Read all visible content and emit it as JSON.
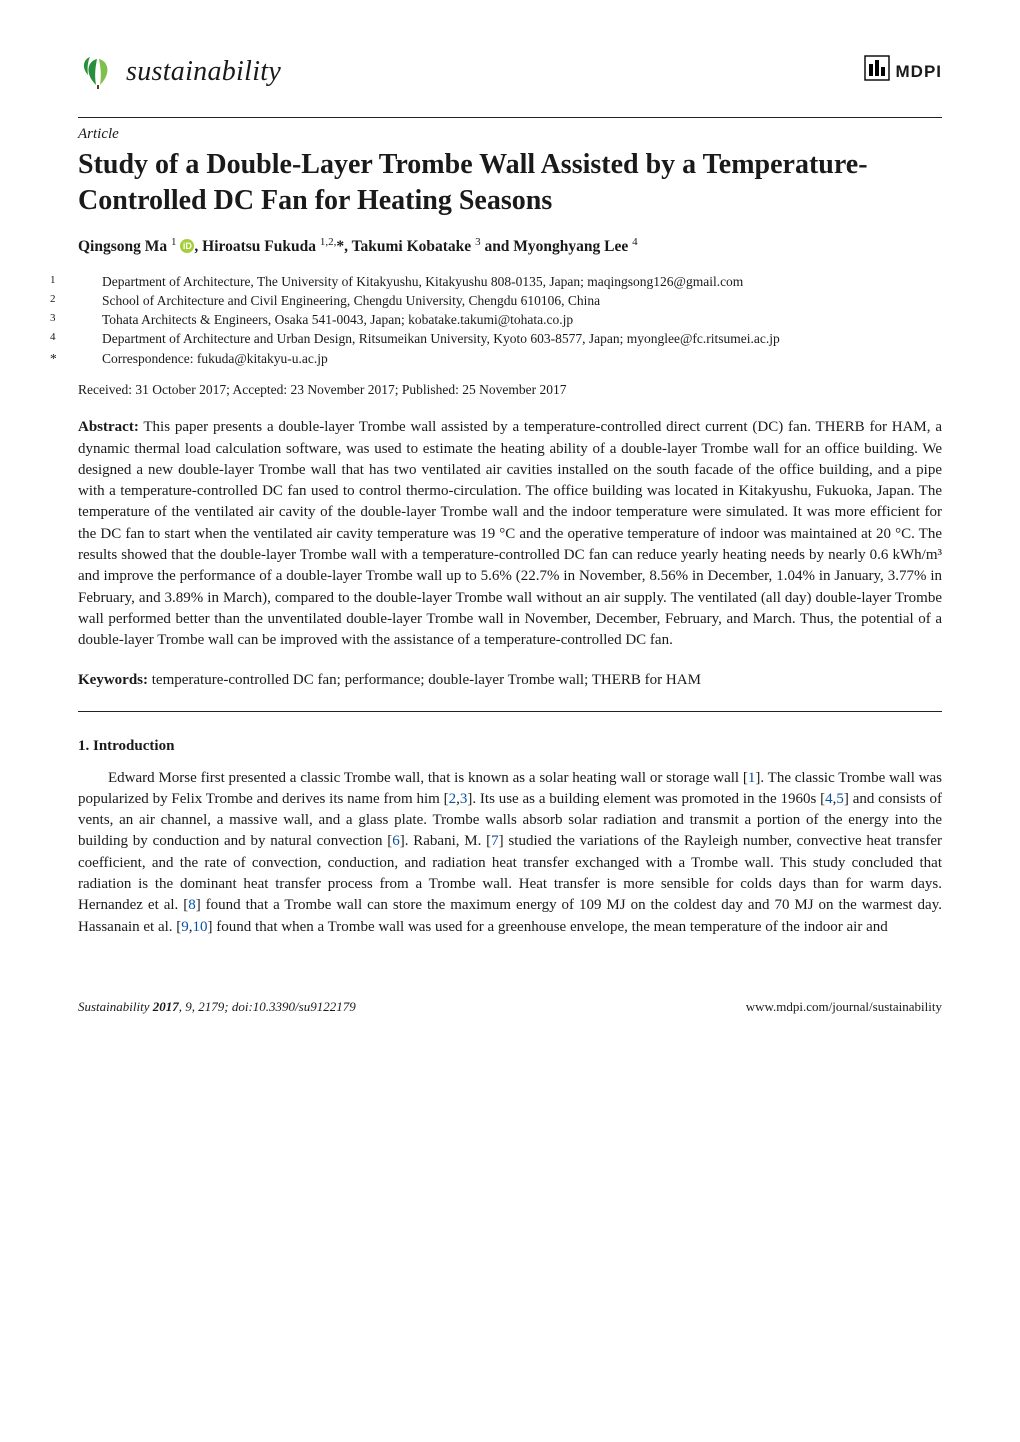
{
  "header": {
    "journal_name": "sustainability",
    "leaf_colors": {
      "main": "#2a8f3a",
      "accent": "#7fbf4b"
    },
    "mdpi": "MDPI"
  },
  "article": {
    "type": "Article",
    "title": "Study of a Double-Layer Trombe Wall Assisted by a Temperature-Controlled DC Fan for Heating Seasons",
    "authors_html": "Qingsong Ma <sup>1</sup> <span class=\"orcid\" data-name=\"orcid-icon\" data-interactable=\"false\">iD</span>, Hiroatsu Fukuda <sup>1,2,</sup>*, Takumi Kobatake <sup>3</sup> and Myonghyang Lee <sup>4</sup>",
    "affiliations": [
      {
        "marker": "1",
        "text": "Department of Architecture, The University of Kitakyushu, Kitakyushu 808-0135, Japan; maqingsong126@gmail.com"
      },
      {
        "marker": "2",
        "text": "School of Architecture and Civil Engineering, Chengdu University, Chengdu 610106, China"
      },
      {
        "marker": "3",
        "text": "Tohata Architects & Engineers, Osaka 541-0043, Japan; kobatake.takumi@tohata.co.jp"
      },
      {
        "marker": "4",
        "text": "Department of Architecture and Urban Design, Ritsumeikan University, Kyoto 603-8577, Japan; myonglee@fc.ritsumei.ac.jp"
      }
    ],
    "correspondence": {
      "marker": "*",
      "text": "Correspondence: fukuda@kitakyu-u.ac.jp"
    },
    "dates": "Received: 31 October 2017; Accepted: 23 November 2017; Published: 25 November 2017",
    "abstract_label": "Abstract:",
    "abstract_text": "This paper presents a double-layer Trombe wall assisted by a temperature-controlled direct current (DC) fan. THERB for HAM, a dynamic thermal load calculation software, was used to estimate the heating ability of a double-layer Trombe wall for an office building. We designed a new double-layer Trombe wall that has two ventilated air cavities installed on the south facade of the office building, and a pipe with a temperature-controlled DC fan used to control thermo-circulation. The office building was located in Kitakyushu, Fukuoka, Japan. The temperature of the ventilated air cavity of the double-layer Trombe wall and the indoor temperature were simulated. It was more efficient for the DC fan to start when the ventilated air cavity temperature was 19 °C and the operative temperature of indoor was maintained at 20 °C. The results showed that the double-layer Trombe wall with a temperature-controlled DC fan can reduce yearly heating needs by nearly 0.6 kWh/m³ and improve the performance of a double-layer Trombe wall up to 5.6% (22.7% in November, 8.56% in December, 1.04% in January, 3.77% in February, and 3.89% in March), compared to the double-layer Trombe wall without an air supply. The ventilated (all day) double-layer Trombe wall performed better than the unventilated double-layer Trombe wall in November, December, February, and March. Thus, the potential of a double-layer Trombe wall can be improved with the assistance of a temperature-controlled DC fan.",
    "keywords_label": "Keywords:",
    "keywords_text": "temperature-controlled DC fan; performance; double-layer Trombe wall; THERB for HAM"
  },
  "section": {
    "heading": "1. Introduction",
    "para_html": "Edward Morse first presented a classic Trombe wall, that is known as a solar heating wall or storage wall [<span class=\"cite\">1</span>]. The classic Trombe wall was popularized by Felix Trombe and derives its name from him [<span class=\"cite\">2</span>,<span class=\"cite\">3</span>]. Its use as a building element was promoted in the 1960s [<span class=\"cite\">4</span>,<span class=\"cite\">5</span>] and consists of vents, an air channel, a massive wall, and a glass plate. Trombe walls absorb solar radiation and transmit a portion of the energy into the building by conduction and by natural convection [<span class=\"cite\">6</span>]. Rabani, M. [<span class=\"cite\">7</span>] studied the variations of the Rayleigh number, convective heat transfer coefficient, and the rate of convection, conduction, and radiation heat transfer exchanged with a Trombe wall. This study concluded that radiation is the dominant heat transfer process from a Trombe wall. Heat transfer is more sensible for colds days than for warm days. Hernandez et al. [<span class=\"cite\">8</span>] found that a Trombe wall can store the maximum energy of 109 MJ on the coldest day and 70 MJ on the warmest day. Hassanain et al. [<span class=\"cite\">9</span>,<span class=\"cite\">10</span>] found that when a Trombe wall was used for a greenhouse envelope, the mean temperature of the indoor air and"
  },
  "footer": {
    "left_html": "Sustainability <b>2017</b>, 9, 2179; doi:10.3390/su9122179",
    "right": "www.mdpi.com/journal/sustainability"
  },
  "colors": {
    "text": "#1a1a1a",
    "cite": "#0a50a1",
    "orcid_bg": "#a6ce39",
    "background": "#ffffff"
  }
}
